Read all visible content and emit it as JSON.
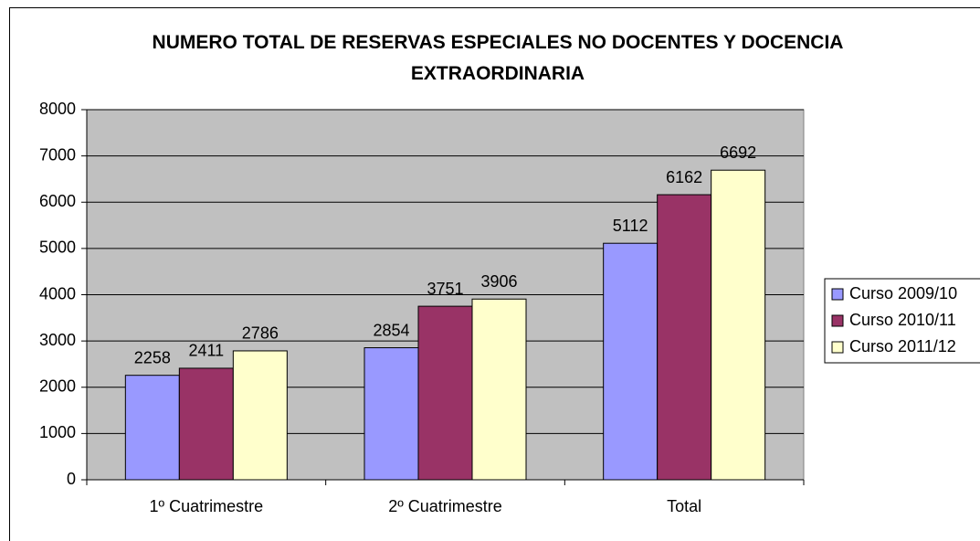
{
  "chart_data": {
    "type": "bar",
    "title": "NUMERO TOTAL DE RESERVAS ESPECIALES NO DOCENTES Y DOCENCIA EXTRAORDINARIA",
    "categories": [
      "1º Cuatrimestre",
      "2º Cuatrimestre",
      "Total"
    ],
    "series": [
      {
        "name": "Curso 2009/10",
        "color": "#9999ff",
        "values": [
          2258,
          2854,
          5112
        ]
      },
      {
        "name": "Curso 2010/11",
        "color": "#993366",
        "values": [
          2411,
          3751,
          6162
        ]
      },
      {
        "name": "Curso 2011/12",
        "color": "#ffffcc",
        "values": [
          2786,
          3906,
          6692
        ]
      }
    ],
    "ylim": [
      0,
      8000
    ],
    "yticks": [
      0,
      1000,
      2000,
      3000,
      4000,
      5000,
      6000,
      7000,
      8000
    ],
    "grid": true,
    "legend": "right",
    "plot_background": "#c0c0c0"
  }
}
